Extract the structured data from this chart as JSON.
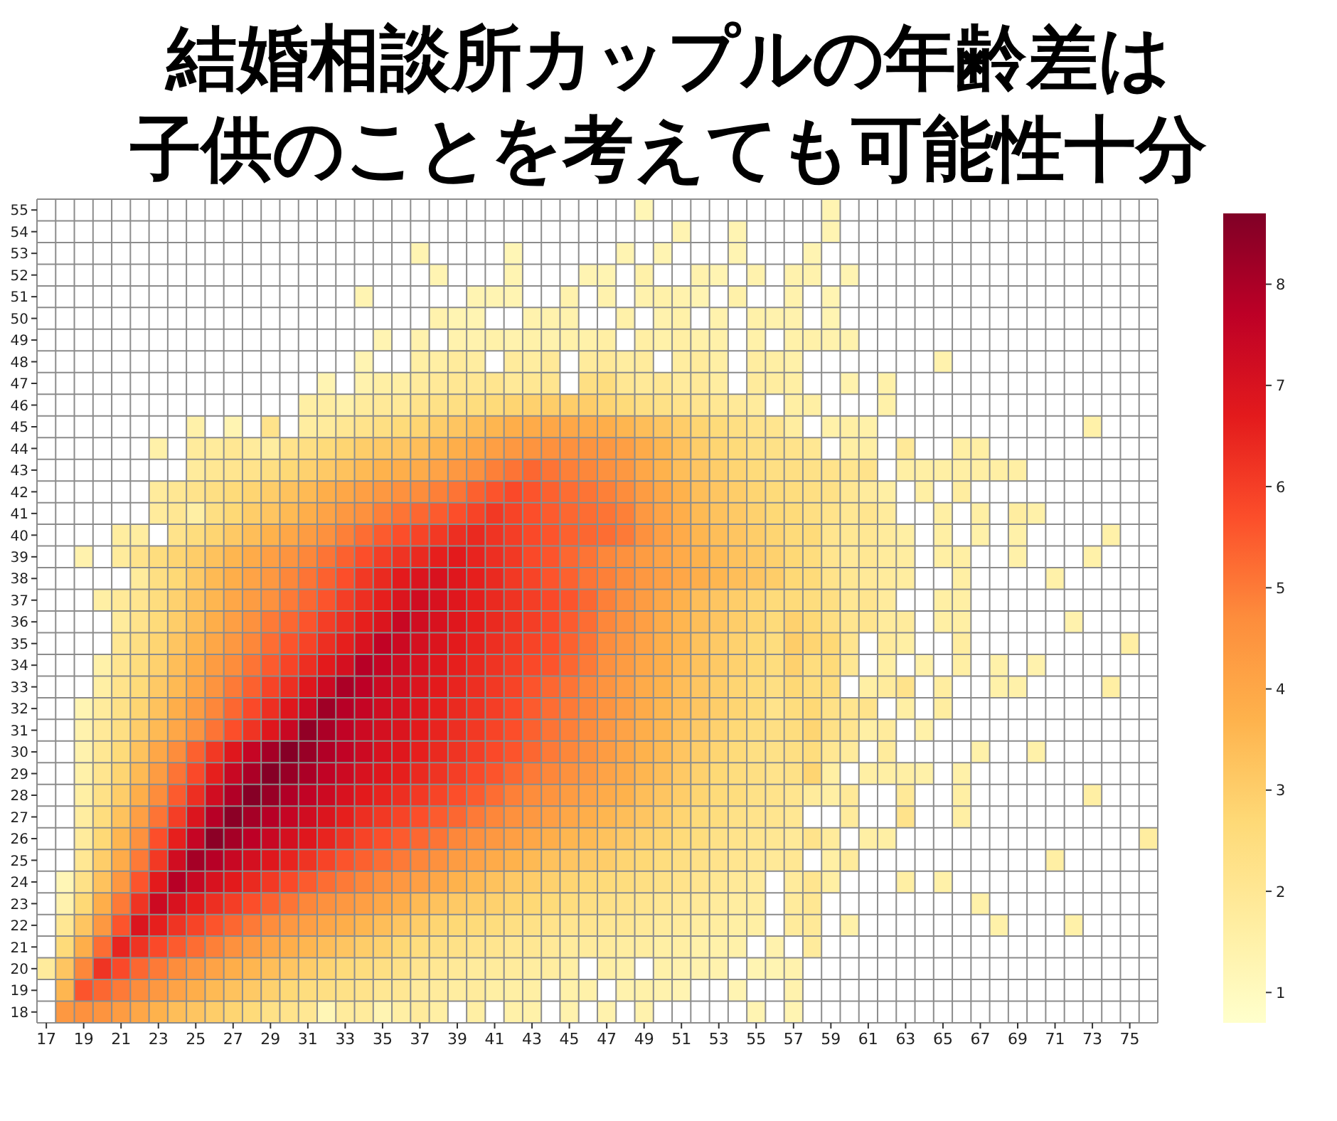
{
  "chart_data": {
    "type": "heatmap",
    "title": "結婚相談所カップルの年齢差は子供のことを考えても可能性十分",
    "categories": [
      "17",
      null,
      "19",
      null,
      "21",
      null,
      "23",
      null,
      "25",
      null,
      "27",
      null,
      "29",
      null,
      "31",
      null,
      "33",
      null,
      "35",
      null,
      "37",
      null,
      "39",
      null,
      "41",
      null,
      "43",
      null,
      "45",
      null,
      "47",
      null,
      "49",
      null,
      "51",
      null,
      "53",
      null,
      "55",
      null,
      "57",
      null,
      "59",
      null,
      "61",
      null,
      "63",
      null,
      "65",
      null,
      "67",
      null,
      "69",
      null,
      "71",
      null,
      "73",
      null,
      "75",
      null
    ],
    "y_categories": [
      "55",
      "54",
      "53",
      "52",
      "51",
      "50",
      "49",
      "48",
      "47",
      "46",
      "45",
      "44",
      "43",
      "42",
      "41",
      "40",
      "39",
      "38",
      "37",
      "36",
      "35",
      "34",
      "33",
      "32",
      "31",
      "30",
      "29",
      "28",
      "27",
      "26",
      "25",
      "24",
      "23",
      "22",
      "21",
      "20",
      "19",
      "18"
    ],
    "clim": [
      0.7,
      8.7
    ],
    "cticks": [
      1,
      2,
      3,
      4,
      5,
      6,
      7,
      8
    ],
    "grid": true,
    "cells": [
      [
        null,
        null,
        null,
        null,
        null,
        null,
        null,
        null,
        null,
        null,
        null,
        null,
        null,
        null,
        null,
        null,
        null,
        null,
        null,
        null,
        null,
        null,
        null,
        null,
        null,
        null,
        null,
        null,
        null,
        null,
        null,
        null,
        1.2,
        null,
        null,
        null,
        null,
        null,
        null,
        null,
        null,
        null,
        1.3,
        null,
        null,
        null,
        null,
        null,
        null,
        null,
        null,
        null,
        null,
        null,
        null,
        null,
        null,
        null,
        null,
        null
      ],
      [
        null,
        null,
        null,
        null,
        null,
        null,
        null,
        null,
        null,
        null,
        null,
        null,
        null,
        null,
        null,
        null,
        null,
        null,
        null,
        null,
        null,
        null,
        null,
        null,
        null,
        null,
        null,
        null,
        null,
        null,
        null,
        null,
        null,
        null,
        1.3,
        null,
        null,
        1.3,
        null,
        null,
        null,
        null,
        1.3,
        null,
        null,
        null,
        null,
        null,
        null,
        null,
        null,
        null,
        null,
        null,
        null,
        null,
        null,
        null,
        null,
        null
      ],
      [
        null,
        null,
        null,
        null,
        null,
        null,
        null,
        null,
        null,
        null,
        null,
        null,
        null,
        null,
        null,
        null,
        null,
        null,
        null,
        null,
        1.3,
        null,
        null,
        null,
        null,
        1.2,
        null,
        null,
        null,
        null,
        null,
        1.3,
        null,
        1.3,
        null,
        null,
        null,
        1.3,
        null,
        null,
        null,
        1.3,
        null,
        null,
        null,
        null,
        null,
        null,
        null,
        null,
        null,
        null,
        null,
        null,
        null,
        null,
        null,
        null,
        null,
        null
      ],
      [
        null,
        null,
        null,
        null,
        null,
        null,
        null,
        null,
        null,
        null,
        null,
        null,
        null,
        null,
        null,
        null,
        null,
        null,
        null,
        null,
        null,
        1.3,
        null,
        null,
        null,
        1.3,
        null,
        null,
        null,
        1.3,
        1.3,
        null,
        1.5,
        null,
        null,
        1.4,
        1.3,
        null,
        1.4,
        null,
        1.4,
        1.4,
        null,
        1.3,
        null,
        null,
        null,
        null,
        null,
        null,
        null,
        null,
        null,
        null,
        null,
        null,
        null,
        null,
        null,
        null
      ],
      [
        null,
        null,
        null,
        null,
        null,
        null,
        null,
        null,
        null,
        null,
        null,
        null,
        null,
        null,
        null,
        null,
        null,
        1.3,
        null,
        null,
        null,
        null,
        null,
        1.3,
        1.3,
        1.3,
        null,
        null,
        1.4,
        null,
        1.4,
        null,
        1.4,
        1.5,
        1.4,
        1.3,
        null,
        1.5,
        null,
        null,
        1.4,
        null,
        1.3,
        null,
        null,
        null,
        null,
        null,
        null,
        null,
        null,
        null,
        null,
        null,
        null,
        null,
        null,
        null,
        null,
        null
      ],
      [
        null,
        null,
        null,
        null,
        null,
        null,
        null,
        null,
        null,
        null,
        null,
        null,
        null,
        null,
        null,
        null,
        null,
        null,
        null,
        null,
        null,
        1.4,
        1.3,
        1.3,
        null,
        null,
        1.4,
        1.4,
        1.4,
        null,
        null,
        1.5,
        null,
        1.4,
        1.5,
        null,
        1.4,
        null,
        1.5,
        1.4,
        1.4,
        null,
        1.3,
        null,
        null,
        null,
        null,
        null,
        null,
        null,
        null,
        null,
        null,
        null,
        null,
        null,
        null,
        null,
        null,
        null
      ],
      [
        null,
        null,
        null,
        null,
        null,
        null,
        null,
        null,
        null,
        null,
        null,
        null,
        null,
        null,
        null,
        null,
        null,
        null,
        1.3,
        null,
        1.4,
        null,
        1.4,
        1.4,
        1.5,
        1.4,
        1.5,
        1.4,
        1.5,
        1.5,
        1.6,
        null,
        1.6,
        1.5,
        1.6,
        1.5,
        1.5,
        null,
        1.5,
        null,
        1.5,
        1.5,
        1.4,
        1.4,
        null,
        null,
        null,
        null,
        null,
        null,
        null,
        null,
        null,
        null,
        null,
        null,
        null,
        null,
        null,
        null
      ],
      [
        null,
        null,
        null,
        null,
        null,
        null,
        null,
        null,
        null,
        null,
        null,
        null,
        null,
        null,
        null,
        null,
        null,
        1.3,
        null,
        null,
        1.6,
        1.6,
        1.8,
        1.7,
        null,
        1.8,
        1.7,
        1.9,
        null,
        1.8,
        1.9,
        1.7,
        1.8,
        null,
        1.7,
        1.8,
        1.6,
        null,
        1.7,
        1.6,
        1.5,
        null,
        null,
        null,
        null,
        null,
        null,
        null,
        1.4,
        null,
        null,
        null,
        null,
        null,
        null,
        null,
        null,
        null,
        null,
        null
      ],
      [
        null,
        null,
        null,
        null,
        null,
        null,
        null,
        null,
        null,
        null,
        null,
        null,
        null,
        null,
        null,
        1.3,
        null,
        1.4,
        1.6,
        1.6,
        1.8,
        1.9,
        2,
        2,
        2.1,
        1.9,
        2,
        2.1,
        null,
        2.4,
        2.5,
        2,
        1.9,
        2,
        1.8,
        1.9,
        1.7,
        null,
        1.8,
        1.7,
        1.6,
        null,
        null,
        1.4,
        null,
        1.5,
        null,
        null,
        null,
        null,
        null,
        null,
        null,
        null,
        null,
        null,
        null,
        null,
        null,
        null
      ],
      [
        null,
        null,
        null,
        null,
        null,
        null,
        null,
        null,
        null,
        null,
        null,
        null,
        null,
        null,
        1.6,
        1.7,
        1.5,
        1.8,
        1.9,
        1.9,
        2.2,
        2.3,
        2.4,
        2.5,
        2.6,
        2.8,
        2.9,
        3,
        3,
        3,
        2.8,
        2.6,
        2.4,
        2.3,
        2.2,
        2.1,
        2,
        1.9,
        1.8,
        null,
        1.6,
        1.6,
        null,
        null,
        null,
        1.5,
        null,
        null,
        null,
        null,
        null,
        null,
        null,
        null,
        null,
        null,
        null,
        null,
        null,
        null
      ],
      [
        null,
        null,
        null,
        null,
        null,
        null,
        null,
        null,
        1.5,
        null,
        1.3,
        null,
        2.2,
        null,
        1.7,
        1.8,
        2,
        2.2,
        2.4,
        2.6,
        2.8,
        3,
        3.2,
        3.4,
        3.6,
        3.8,
        3.9,
        4,
        4,
        3.9,
        3.8,
        3.6,
        3.4,
        3.2,
        3,
        2.8,
        2.6,
        2.4,
        2.2,
        2.1,
        1.7,
        null,
        1.5,
        1.6,
        1.5,
        null,
        null,
        null,
        null,
        null,
        null,
        null,
        null,
        null,
        null,
        null,
        1.5,
        null,
        null,
        null
      ],
      [
        null,
        null,
        null,
        null,
        null,
        null,
        1.5,
        null,
        1.8,
        1.8,
        2,
        1.8,
        1.7,
        2.2,
        2.4,
        2.6,
        2.8,
        3,
        3.1,
        3.2,
        3.4,
        3.6,
        3.8,
        4,
        4.2,
        4.4,
        4.5,
        4.6,
        4.6,
        4.5,
        4.4,
        4.2,
        3.9,
        3.6,
        3.3,
        3,
        2.8,
        2.6,
        2.4,
        2.3,
        2.2,
        2,
        null,
        1.6,
        1.6,
        null,
        1.9,
        null,
        null,
        1.6,
        1.6,
        null,
        null,
        null,
        null,
        null,
        null,
        null,
        null,
        null
      ],
      [
        null,
        null,
        null,
        null,
        null,
        null,
        null,
        null,
        1.8,
        2,
        2.1,
        2.2,
        2.4,
        2.7,
        2.9,
        3.1,
        3.3,
        3.5,
        3.7,
        3.8,
        3.9,
        4.1,
        4.4,
        4.6,
        4.9,
        5.1,
        5.3,
        5.1,
        4.9,
        4.8,
        4.6,
        4.4,
        4,
        3.7,
        3.4,
        3.2,
        3,
        2.8,
        2.6,
        2.4,
        2.4,
        2.3,
        2.2,
        2.1,
        2.2,
        null,
        1.6,
        1.6,
        1.6,
        1.6,
        1.6,
        1.6,
        1.6,
        null,
        null,
        null,
        null,
        null,
        null,
        null
      ],
      [
        null,
        null,
        null,
        null,
        null,
        null,
        1.8,
        2,
        2.2,
        2.4,
        2.6,
        2.8,
        3,
        3.3,
        3.5,
        3.8,
        4,
        4.2,
        4.4,
        4.6,
        4.7,
        4.9,
        5.1,
        5.4,
        5.6,
        5.8,
        5.6,
        5.4,
        5.2,
        5.1,
        4.9,
        4.7,
        4.3,
        4,
        3.7,
        3.4,
        3.2,
        3,
        2.8,
        2.6,
        2.5,
        2.4,
        2.3,
        2,
        1.8,
        1.6,
        null,
        1.6,
        null,
        1.7,
        null,
        null,
        null,
        null,
        null,
        null,
        null,
        null,
        null,
        null
      ],
      [
        null,
        null,
        null,
        null,
        null,
        null,
        1.8,
        2,
        1.6,
        2.4,
        2.7,
        3,
        3.2,
        3.5,
        3.8,
        4.1,
        4.4,
        4.6,
        4.9,
        5.1,
        5.3,
        5.5,
        5.7,
        5.9,
        6.1,
        5.9,
        5.7,
        5.5,
        5.3,
        5.2,
        5.1,
        4.9,
        4.4,
        4.1,
        3.8,
        3.5,
        3.3,
        3.1,
        2.9,
        2.7,
        2.6,
        2.4,
        2.2,
        2,
        2.1,
        1.8,
        null,
        null,
        1.6,
        null,
        1.6,
        null,
        1.7,
        1.5,
        null,
        null,
        null,
        null,
        null,
        null
      ],
      [
        null,
        null,
        null,
        null,
        1.7,
        1.7,
        null,
        2.2,
        2.5,
        2.8,
        3.1,
        3.4,
        3.7,
        4,
        4.3,
        4.6,
        4.9,
        5.2,
        5.5,
        5.7,
        5.9,
        6.1,
        6.3,
        6.4,
        6.2,
        6,
        5.8,
        5.6,
        5.4,
        5.3,
        5.2,
        5,
        4.6,
        4.2,
        3.9,
        3.6,
        3.4,
        3.2,
        3,
        2.8,
        2.6,
        2.6,
        2.1,
        2,
        2,
        1.8,
        1.6,
        null,
        1.6,
        null,
        1.5,
        null,
        1.5,
        null,
        null,
        null,
        null,
        1.5,
        null,
        null
      ],
      [
        null,
        null,
        1.4,
        null,
        1.8,
        2.2,
        2.5,
        2.8,
        3,
        3.3,
        3.6,
        3.9,
        4.2,
        4.5,
        4.8,
        5.1,
        5.4,
        5.7,
        6,
        6.2,
        6.4,
        6.6,
        6.7,
        6.5,
        6.3,
        6.1,
        5.8,
        5.6,
        5.3,
        5.1,
        4.8,
        4.6,
        4.3,
        4.1,
        3.9,
        3.7,
        3.5,
        3.3,
        3.1,
        2.9,
        2.7,
        2.5,
        2.1,
        1.9,
        2,
        1.8,
        1.7,
        null,
        1.6,
        1.6,
        null,
        null,
        1.5,
        null,
        null,
        null,
        1.5,
        null,
        null,
        null
      ],
      [
        null,
        null,
        null,
        null,
        null,
        1.8,
        2.4,
        2.7,
        3.1,
        3.5,
        3.8,
        4.1,
        4.4,
        4.8,
        5.1,
        5.4,
        5.7,
        6.1,
        6.4,
        6.7,
        6.9,
        7,
        6.8,
        6.6,
        6.4,
        6.1,
        5.9,
        5.6,
        5.4,
        5.1,
        4.9,
        4.7,
        4.4,
        4.2,
        4,
        3.8,
        3.6,
        3.4,
        3.2,
        3,
        2.7,
        2.6,
        2.2,
        2,
        1.9,
        1.8,
        1.7,
        null,
        null,
        1.6,
        null,
        null,
        null,
        null,
        1.5,
        null,
        null,
        null,
        null,
        null
      ],
      [
        null,
        null,
        null,
        1.6,
        1.9,
        2.1,
        2.5,
        2.9,
        3.3,
        3.6,
        4,
        4.3,
        4.6,
        5,
        5.3,
        5.6,
        6,
        6.3,
        6.6,
        6.9,
        7.2,
        7,
        6.8,
        6.6,
        6.4,
        6.2,
        6,
        5.8,
        5.6,
        5.3,
        4.9,
        4.6,
        4.3,
        4,
        3.7,
        3.4,
        3.2,
        3,
        2.8,
        2.6,
        2.6,
        2.5,
        2.4,
        2,
        2.1,
        1.8,
        null,
        null,
        1.6,
        1.6,
        null,
        null,
        null,
        null,
        null,
        null,
        null,
        null,
        null,
        null
      ],
      [
        null,
        null,
        null,
        null,
        1.8,
        2.2,
        2.6,
        3,
        3.4,
        3.8,
        4.2,
        4.6,
        5,
        5.3,
        5.6,
        6,
        6.3,
        6.6,
        6.9,
        7.4,
        7.2,
        7,
        6.8,
        6.6,
        6.4,
        6.2,
        6,
        5.8,
        5.5,
        5.2,
        4.8,
        4.5,
        4.2,
        3.9,
        3.6,
        3.4,
        3.2,
        3,
        2.8,
        2.6,
        2.9,
        2.7,
        2.4,
        2.1,
        2.1,
        1.8,
        1.8,
        null,
        1.6,
        1.6,
        null,
        null,
        null,
        null,
        null,
        1.4,
        null,
        null,
        null,
        null
      ],
      [
        null,
        null,
        null,
        null,
        2,
        2.4,
        2.8,
        3.2,
        3.6,
        4,
        4.4,
        4.8,
        5.2,
        5.6,
        5.9,
        6.3,
        6.6,
        7,
        7.6,
        7.3,
        7.1,
        6.9,
        6.7,
        6.5,
        6.3,
        6.1,
        5.9,
        5.7,
        5.4,
        5.1,
        4.7,
        4.4,
        4.1,
        3.8,
        3.6,
        3.3,
        3.1,
        2.9,
        2.7,
        2.5,
        3,
        2.8,
        2.7,
        2.1,
        null,
        1.8,
        1.6,
        null,
        null,
        1.7,
        null,
        null,
        null,
        null,
        null,
        null,
        null,
        null,
        1.6,
        null
      ],
      [
        null,
        null,
        null,
        1.5,
        2.1,
        2.5,
        2.9,
        3.4,
        3.8,
        4.3,
        4.7,
        5.1,
        5.5,
        5.9,
        6.3,
        6.7,
        7.1,
        7.8,
        7.5,
        7.2,
        7,
        6.8,
        6.6,
        6.4,
        6.2,
        6,
        5.8,
        5.6,
        5.3,
        5,
        4.6,
        4.3,
        4,
        3.8,
        3.5,
        3.3,
        3.1,
        2.9,
        2.7,
        2.5,
        2.9,
        2.5,
        2.6,
        2,
        null,
        1.6,
        null,
        1.5,
        null,
        1.6,
        null,
        1.5,
        null,
        1.4,
        null,
        null,
        null,
        null,
        null,
        null
      ],
      [
        null,
        null,
        null,
        1.6,
        2.2,
        2.6,
        3.1,
        3.5,
        4,
        4.5,
        5,
        5.4,
        5.9,
        6.3,
        6.8,
        7.3,
        8,
        7.7,
        7.3,
        7.1,
        6.9,
        6.7,
        6.5,
        6.3,
        6.1,
        5.9,
        5.6,
        5.3,
        5.1,
        4.8,
        4.5,
        4.2,
        3.9,
        3.7,
        3.4,
        3.2,
        3,
        2.8,
        2.6,
        2.4,
        2.7,
        2.5,
        2.5,
        null,
        1.6,
        1.8,
        2.2,
        null,
        1.7,
        null,
        null,
        1.5,
        1.5,
        null,
        null,
        null,
        null,
        1.6,
        null,
        null
      ],
      [
        null,
        null,
        1.3,
        1.8,
        2.3,
        2.8,
        3.3,
        3.8,
        4.3,
        4.8,
        5.3,
        5.8,
        6.3,
        6.8,
        7.3,
        8.2,
        7.8,
        7.5,
        7.2,
        7,
        6.8,
        6.6,
        6.4,
        6.2,
        6,
        5.8,
        5.5,
        5.2,
        5,
        4.8,
        4.5,
        4.2,
        3.9,
        3.6,
        3.4,
        3.2,
        3,
        2.8,
        2.6,
        2.2,
        2.5,
        2.7,
        2.3,
        2.1,
        2.2,
        null,
        1.6,
        null,
        1.7,
        null,
        null,
        null,
        null,
        null,
        null,
        null,
        null,
        null,
        null,
        null
      ],
      [
        null,
        null,
        1.4,
        1.9,
        2.4,
        3,
        3.5,
        4,
        4.5,
        5.1,
        5.7,
        6.2,
        6.8,
        7.4,
        8.4,
        8,
        7.6,
        7.3,
        7.1,
        6.9,
        6.7,
        6.5,
        6.3,
        6.1,
        5.9,
        5.7,
        5.4,
        5.1,
        4.9,
        4.7,
        4.4,
        4.1,
        3.8,
        3.6,
        3.3,
        3.1,
        2.9,
        2.7,
        2.5,
        2.4,
        2.5,
        2.8,
        2.3,
        2.1,
        1.6,
        1.8,
        null,
        1.5,
        null,
        null,
        null,
        null,
        null,
        null,
        null,
        null,
        null,
        null,
        null,
        null
      ],
      [
        null,
        null,
        1.4,
        2,
        2.6,
        3.3,
        4,
        4.7,
        5.4,
        6.1,
        6.8,
        7.5,
        8.1,
        8.6,
        8.3,
        7.9,
        7.6,
        7.3,
        7,
        6.8,
        6.6,
        6.4,
        6.2,
        6,
        5.8,
        5.6,
        5.3,
        5,
        4.8,
        4.6,
        4.3,
        4,
        3.7,
        3.5,
        3.2,
        3,
        2.8,
        2.6,
        2.4,
        2.3,
        2.4,
        2.5,
        2,
        1.8,
        null,
        1.8,
        null,
        null,
        null,
        null,
        1.5,
        null,
        null,
        1.5,
        null,
        null,
        null,
        null,
        null,
        null
      ],
      [
        null,
        null,
        1.5,
        2.1,
        2.8,
        3.5,
        4.3,
        5.1,
        5.8,
        6.6,
        7.4,
        8,
        8.6,
        8.3,
        8,
        7.6,
        7.3,
        7,
        6.8,
        6.6,
        6.4,
        6.2,
        6,
        5.8,
        5.6,
        5.3,
        5,
        4.8,
        4.6,
        4.4,
        4.1,
        3.9,
        3.6,
        3.4,
        3.1,
        2.9,
        2.7,
        2.5,
        2.4,
        2.2,
        2.3,
        2.8,
        1.6,
        null,
        1.6,
        1.6,
        1.6,
        1.5,
        null,
        1.5,
        null,
        null,
        null,
        null,
        null,
        null,
        null,
        null,
        null,
        null
      ],
      [
        null,
        null,
        1.6,
        2.3,
        3,
        3.8,
        4.7,
        5.5,
        6.3,
        7.2,
        7.9,
        8.6,
        8.3,
        7.9,
        7.6,
        7.3,
        7,
        6.7,
        6.5,
        6.3,
        6.1,
        5.9,
        5.7,
        5.5,
        5.2,
        4.9,
        4.7,
        4.5,
        4.3,
        4.1,
        3.9,
        3.7,
        3.4,
        3.2,
        3,
        2.8,
        2.6,
        2.5,
        2.3,
        2.2,
        2.1,
        1.8,
        1.6,
        1.9,
        null,
        null,
        1.9,
        null,
        null,
        1.6,
        null,
        null,
        null,
        null,
        null,
        null,
        1.6,
        null,
        null,
        null
      ],
      [
        null,
        null,
        1.7,
        2.5,
        3.3,
        4.2,
        5.1,
        6,
        6.9,
        7.8,
        8.5,
        8.1,
        7.8,
        7.5,
        7.2,
        6.9,
        6.6,
        6.3,
        6.1,
        5.9,
        5.7,
        5.5,
        5.3,
        5,
        4.8,
        4.6,
        4.4,
        4.2,
        4,
        3.8,
        3.6,
        3.4,
        3.2,
        3,
        2.8,
        2.6,
        2.5,
        2.3,
        2.2,
        2.1,
        2,
        null,
        null,
        1.8,
        null,
        null,
        2.2,
        null,
        null,
        1.6,
        null,
        null,
        null,
        null,
        null,
        null,
        null,
        null,
        null,
        null
      ],
      [
        null,
        null,
        1.8,
        2.7,
        3.6,
        4.6,
        5.7,
        6.6,
        7.5,
        8.5,
        8.1,
        7.7,
        7.4,
        7.1,
        6.8,
        6.5,
        6.2,
        5.9,
        5.7,
        5.5,
        5.3,
        5.1,
        4.8,
        4.6,
        4.4,
        4.2,
        4,
        3.8,
        3.6,
        3.5,
        3.3,
        3.1,
        2.9,
        2.8,
        2.6,
        2.5,
        2.3,
        2.2,
        2.1,
        2,
        1.9,
        2.2,
        1.8,
        null,
        1.6,
        1.6,
        null,
        null,
        null,
        null,
        null,
        null,
        null,
        null,
        null,
        null,
        null,
        null,
        null,
        1.7
      ],
      [
        null,
        null,
        2,
        3,
        3.9,
        5,
        6.1,
        7.2,
        8.1,
        7.8,
        7.4,
        7.1,
        6.8,
        6.5,
        6.2,
        5.9,
        5.6,
        5.4,
        5.2,
        5,
        4.8,
        4.6,
        4.3,
        4.1,
        3.9,
        3.7,
        3.5,
        3.3,
        3.2,
        3.1,
        3,
        2.8,
        2.7,
        2.5,
        2.4,
        2.3,
        2.2,
        2.1,
        2,
        1.9,
        2,
        null,
        1.6,
        1.8,
        null,
        null,
        null,
        null,
        null,
        null,
        null,
        null,
        null,
        null,
        1.6,
        null,
        null,
        null,
        null,
        null
      ],
      [
        null,
        1.2,
        2.3,
        3.3,
        4.4,
        5.6,
        6.7,
        7.8,
        7.4,
        7,
        6.7,
        6.4,
        6.1,
        5.8,
        5.5,
        5.2,
        5,
        4.8,
        4.6,
        4.4,
        4.2,
        4,
        3.7,
        3.5,
        3.3,
        3.1,
        3,
        2.9,
        2.8,
        2.7,
        2.6,
        2.5,
        2.4,
        2.3,
        2.2,
        2.1,
        2,
        1.9,
        1.8,
        null,
        1.8,
        2.1,
        1.6,
        null,
        null,
        null,
        1.6,
        null,
        1.5,
        null,
        null,
        null,
        null,
        null,
        null,
        null,
        null,
        null,
        null,
        null
      ],
      [
        null,
        1.4,
        2.7,
        3.8,
        5,
        6.2,
        7.3,
        7,
        6.6,
        6.3,
        6,
        5.7,
        5.4,
        5.1,
        4.8,
        4.6,
        4.4,
        4.2,
        4,
        3.8,
        3.5,
        3.3,
        3.1,
        3,
        2.9,
        2.8,
        2.7,
        2.6,
        2.5,
        2.4,
        2.3,
        2.2,
        2.1,
        2,
        1.9,
        1.9,
        1.8,
        1.7,
        1.7,
        null,
        1.8,
        2,
        null,
        null,
        null,
        null,
        null,
        null,
        null,
        null,
        1.5,
        null,
        null,
        null,
        null,
        null,
        null,
        null,
        null,
        null
      ],
      [
        null,
        2,
        3.2,
        4.4,
        5.6,
        6.9,
        6.6,
        6.2,
        5.9,
        5.6,
        5.3,
        5,
        4.7,
        4.4,
        4.2,
        4,
        3.8,
        3.6,
        3.4,
        3.2,
        3,
        2.8,
        2.7,
        2.6,
        2.5,
        2.4,
        2.3,
        2.2,
        2.1,
        2.1,
        2,
        2,
        1.9,
        1.8,
        1.8,
        1.7,
        1.7,
        1.6,
        1.6,
        null,
        1.8,
        1.9,
        null,
        1.5,
        null,
        null,
        null,
        null,
        null,
        null,
        null,
        1.5,
        null,
        null,
        null,
        1.5,
        null,
        null,
        null,
        null
      ],
      [
        null,
        2.6,
        3.8,
        5.2,
        6.5,
        6.2,
        5.8,
        5.5,
        5.2,
        4.9,
        4.6,
        4.3,
        4,
        3.8,
        3.6,
        3.4,
        3.2,
        3,
        2.9,
        2.7,
        2.5,
        2.4,
        2.3,
        2.2,
        2.1,
        2,
        2,
        1.9,
        1.8,
        1.8,
        1.8,
        1.7,
        1.7,
        1.6,
        1.6,
        1.5,
        1.5,
        1.5,
        null,
        1.4,
        null,
        1.8,
        null,
        null,
        null,
        null,
        null,
        null,
        null,
        null,
        null,
        null,
        null,
        null,
        null,
        null,
        null,
        null,
        null,
        null
      ],
      [
        1.8,
        3.2,
        4.8,
        6.2,
        5.8,
        5.3,
        5,
        4.7,
        4.4,
        4.1,
        3.8,
        3.6,
        3.4,
        3.2,
        3,
        2.8,
        2.6,
        2.5,
        2.4,
        2.3,
        2.1,
        2,
        1.9,
        1.8,
        1.8,
        1.8,
        1.7,
        1.7,
        1.6,
        null,
        1.6,
        1.5,
        null,
        1.5,
        1.4,
        1.4,
        1.4,
        null,
        1.3,
        1.3,
        1.4,
        null,
        null,
        null,
        null,
        null,
        null,
        null,
        null,
        null,
        null,
        null,
        null,
        null,
        null,
        null,
        null,
        null,
        null,
        null
      ],
      [
        null,
        3.6,
        5.6,
        5.3,
        5,
        4.7,
        4.4,
        4.1,
        3.8,
        3.5,
        3.3,
        3.1,
        2.9,
        2.7,
        2.5,
        2.4,
        2.3,
        2.2,
        2,
        2,
        1.8,
        1.8,
        1.7,
        1.8,
        1.6,
        1.6,
        1.6,
        null,
        1.5,
        1.5,
        null,
        1.4,
        1.5,
        1.4,
        1.3,
        null,
        null,
        1.3,
        null,
        null,
        1.4,
        null,
        null,
        null,
        null,
        null,
        null,
        null,
        null,
        null,
        null,
        null,
        null,
        null,
        null,
        null,
        null,
        null,
        null,
        null
      ],
      [
        null,
        4.4,
        4.6,
        4.5,
        4.3,
        4,
        3.7,
        3.4,
        3.2,
        3,
        2.8,
        2.6,
        2.3,
        2.2,
        2,
        1.2,
        1.8,
        1.8,
        1.3,
        1.6,
        1.8,
        1.6,
        null,
        1.6,
        null,
        1.5,
        1.5,
        null,
        1.4,
        null,
        1.4,
        null,
        1.4,
        null,
        null,
        null,
        null,
        null,
        1.3,
        null,
        1.3,
        null,
        null,
        null,
        null,
        null,
        null,
        null,
        null,
        null,
        null,
        null,
        null,
        null,
        null,
        null,
        null,
        null,
        null,
        null
      ]
    ]
  }
}
